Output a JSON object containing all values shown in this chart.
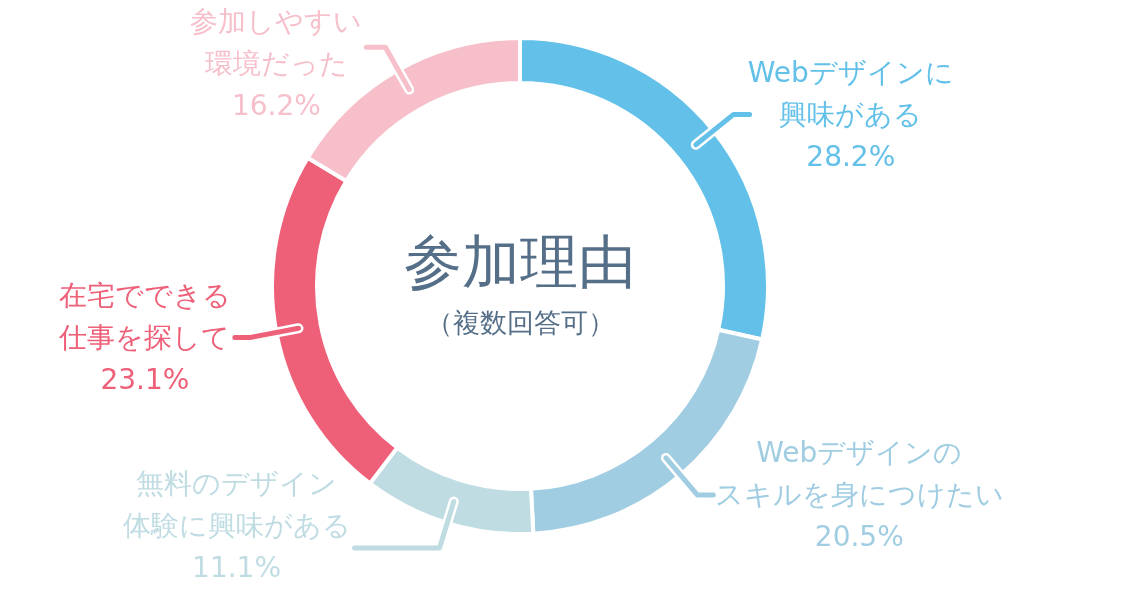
{
  "chart_data": {
    "type": "donut",
    "title": "参加理由",
    "subtitle": "（複数回答可）",
    "categories": [
      "Webデザインに興味がある",
      "Webデザインのスキルを身につけたい",
      "無料のデザイン体験に興味がある",
      "在宅でできる仕事を探して",
      "参加しやすい環境だった"
    ],
    "values": [
      28.2,
      20.5,
      11.1,
      23.1,
      16.2
    ],
    "colors": [
      "#63c0e9",
      "#a0cde2",
      "#bfdce2",
      "#ee5f78",
      "#f6bfca"
    ],
    "value_labels": [
      "28.2%",
      "20.5%",
      "11.1%",
      "23.1%",
      "16.2%"
    ]
  }
}
